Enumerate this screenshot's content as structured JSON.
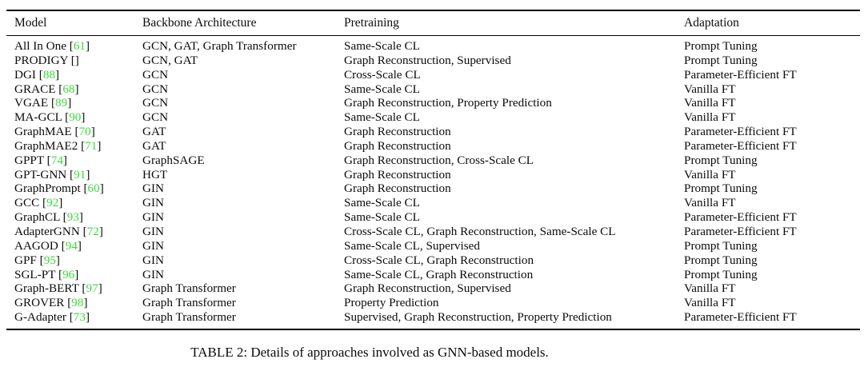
{
  "caption": "TABLE 2: Details of approaches involved as GNN-based models.",
  "colors": {
    "citation_green": "#3bdc3b",
    "text": "#0b0b0b",
    "rule": "#000000",
    "background": "#ffffff"
  },
  "table": {
    "columns": [
      "Model",
      "Backbone Architecture",
      "Pretraining",
      "Adaptation"
    ],
    "rows": [
      {
        "model": "All In One",
        "cite": "61",
        "backbone": "GCN, GAT, Graph Transformer",
        "pretraining": "Same-Scale CL",
        "adaptation": "Prompt Tuning"
      },
      {
        "model": "PRODIGY",
        "cite": "",
        "backbone": "GCN, GAT",
        "pretraining": "Graph Reconstruction, Supervised",
        "adaptation": "Prompt Tuning"
      },
      {
        "model": "DGI",
        "cite": "88",
        "backbone": "GCN",
        "pretraining": "Cross-Scale CL",
        "adaptation": "Parameter-Efficient FT"
      },
      {
        "model": "GRACE",
        "cite": "68",
        "backbone": "GCN",
        "pretraining": "Same-Scale CL",
        "adaptation": "Vanilla FT"
      },
      {
        "model": "VGAE",
        "cite": "89",
        "backbone": "GCN",
        "pretraining": "Graph Reconstruction, Property Prediction",
        "adaptation": "Vanilla FT"
      },
      {
        "model": "MA-GCL",
        "cite": "90",
        "backbone": "GCN",
        "pretraining": "Same-Scale CL",
        "adaptation": "Vanilla FT"
      },
      {
        "model": "GraphMAE",
        "cite": "70",
        "backbone": "GAT",
        "pretraining": "Graph Reconstruction",
        "adaptation": "Parameter-Efficient FT"
      },
      {
        "model": "GraphMAE2",
        "cite": "71",
        "backbone": "GAT",
        "pretraining": "Graph Reconstruction",
        "adaptation": "Parameter-Efficient FT"
      },
      {
        "model": "GPPT",
        "cite": "74",
        "backbone": "GraphSAGE",
        "pretraining": "Graph Reconstruction, Cross-Scale CL",
        "adaptation": "Prompt Tuning"
      },
      {
        "model": "GPT-GNN",
        "cite": "91",
        "backbone": "HGT",
        "pretraining": "Graph Reconstruction",
        "adaptation": "Vanilla FT"
      },
      {
        "model": "GraphPrompt",
        "cite": "60",
        "backbone": "GIN",
        "pretraining": "Graph Reconstruction",
        "adaptation": "Prompt Tuning"
      },
      {
        "model": "GCC",
        "cite": "92",
        "backbone": "GIN",
        "pretraining": "Same-Scale CL",
        "adaptation": "Vanilla FT"
      },
      {
        "model": "GraphCL",
        "cite": "93",
        "backbone": "GIN",
        "pretraining": "Same-Scale CL",
        "adaptation": "Parameter-Efficient FT"
      },
      {
        "model": "AdapterGNN",
        "cite": "72",
        "backbone": "GIN",
        "pretraining": "Cross-Scale CL, Graph Reconstruction, Same-Scale CL",
        "adaptation": "Parameter-Efficient FT"
      },
      {
        "model": "AAGOD",
        "cite": "94",
        "backbone": "GIN",
        "pretraining": "Same-Scale CL, Supervised",
        "adaptation": "Prompt Tuning"
      },
      {
        "model": "GPF",
        "cite": "95",
        "backbone": "GIN",
        "pretraining": "Cross-Scale CL, Graph Reconstruction",
        "adaptation": "Prompt Tuning"
      },
      {
        "model": "SGL-PT",
        "cite": "96",
        "backbone": "GIN",
        "pretraining": "Same-Scale CL, Graph Reconstruction",
        "adaptation": "Prompt Tuning"
      },
      {
        "model": "Graph-BERT",
        "cite": "97",
        "backbone": "Graph Transformer",
        "pretraining": "Graph Reconstruction, Supervised",
        "adaptation": "Vanilla FT"
      },
      {
        "model": "GROVER",
        "cite": "98",
        "backbone": "Graph Transformer",
        "pretraining": "Property Prediction",
        "adaptation": "Vanilla FT"
      },
      {
        "model": "G-Adapter",
        "cite": "73",
        "backbone": "Graph Transformer",
        "pretraining": "Supervised, Graph Reconstruction, Property Prediction",
        "adaptation": "Parameter-Efficient FT"
      }
    ]
  }
}
